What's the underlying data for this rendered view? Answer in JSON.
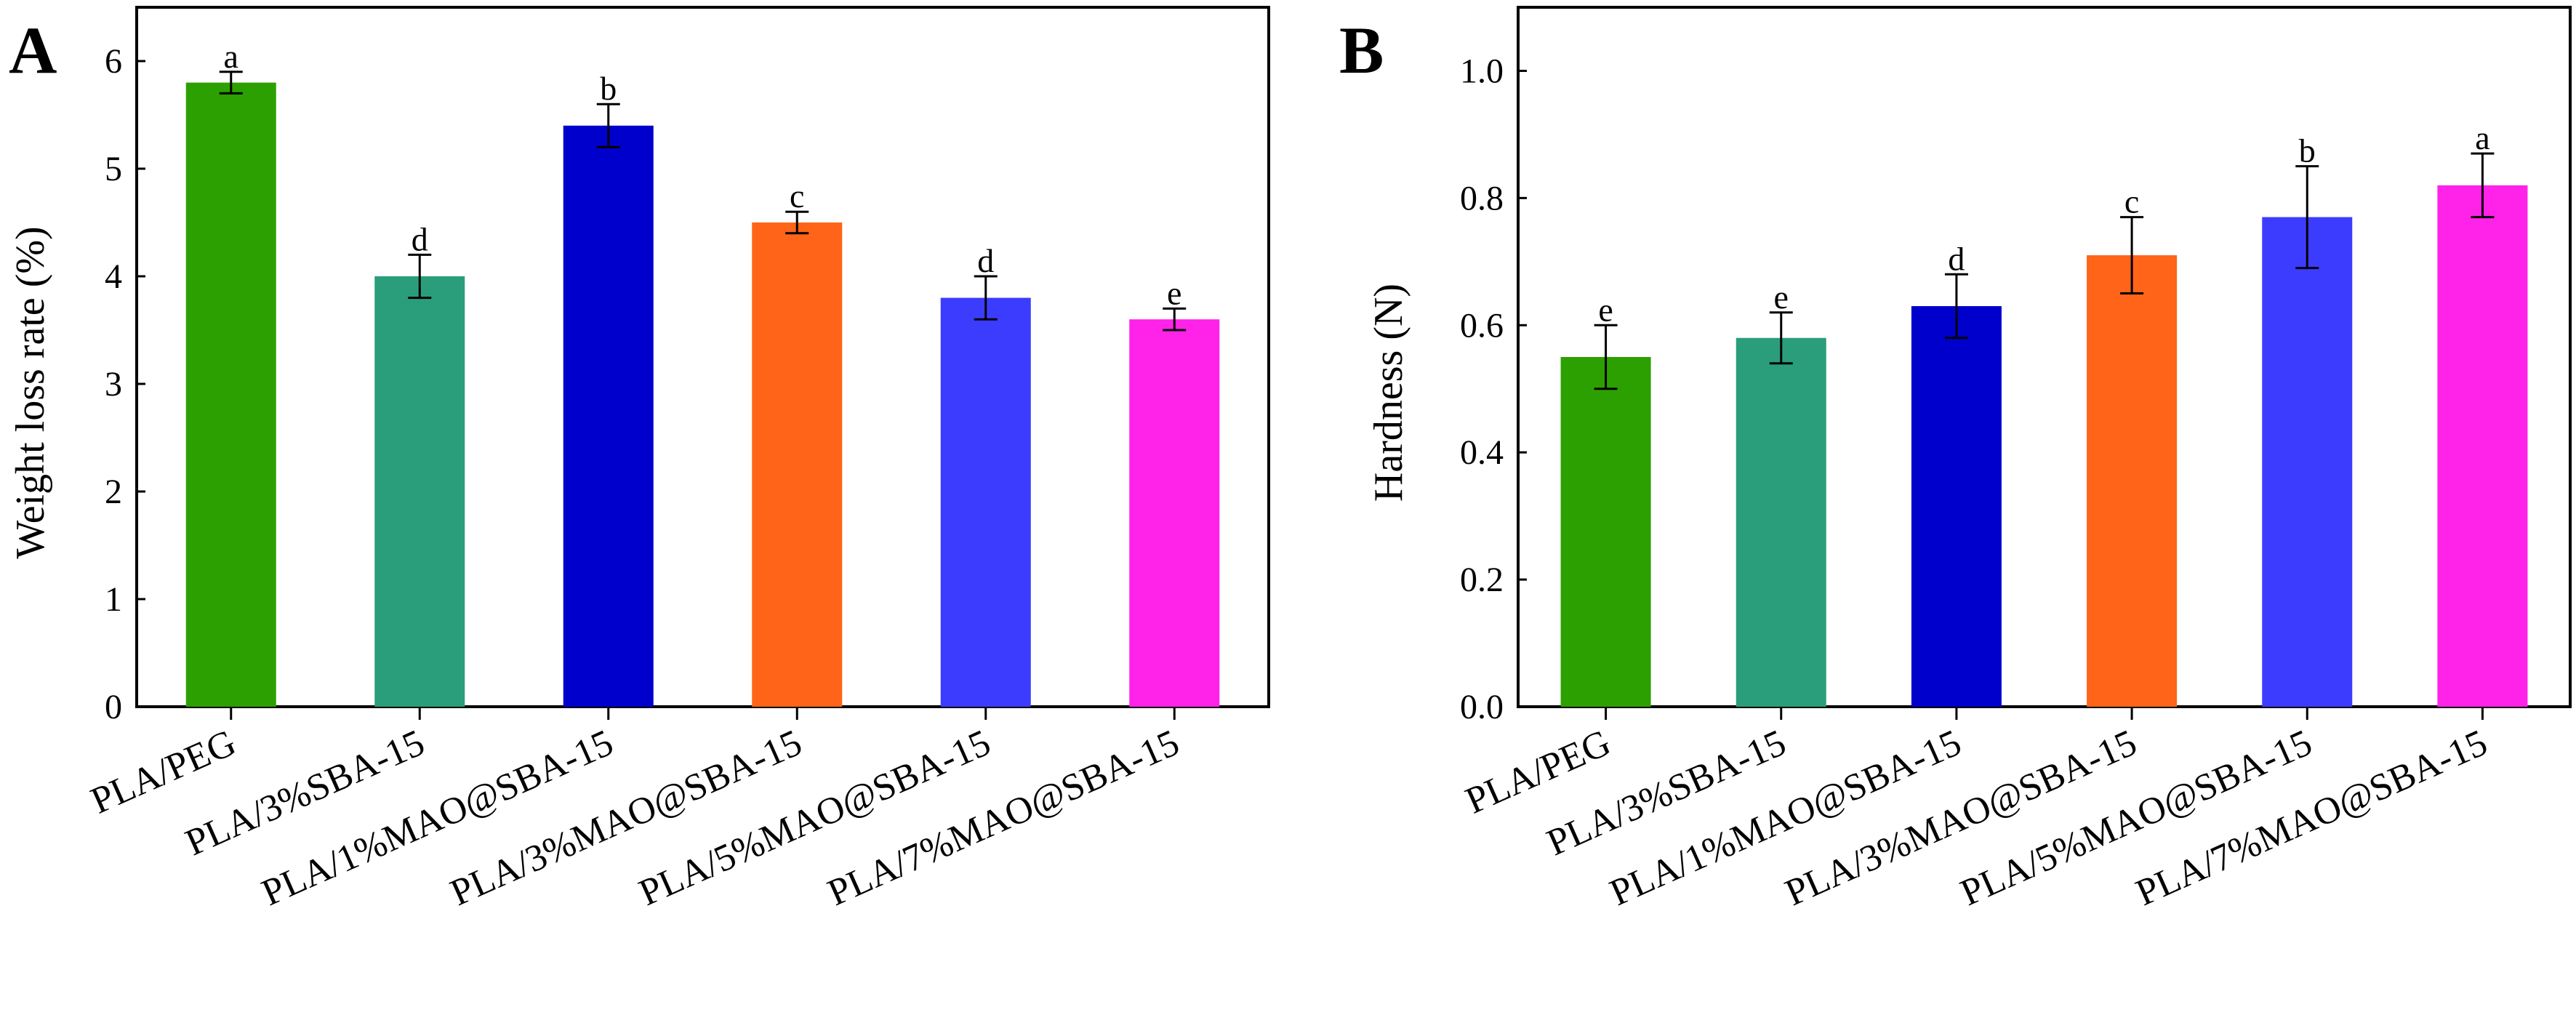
{
  "chart_data": [
    {
      "panel": "A",
      "type": "bar",
      "categories": [
        "PLA/PEG",
        "PLA/3%SBA-15",
        "PLA/1%MAO@SBA-15",
        "PLA/3%MAO@SBA-15",
        "PLA/5%MAO@SBA-15",
        "PLA/7%MAO@SBA-15"
      ],
      "values": [
        5.8,
        4.0,
        5.4,
        4.5,
        3.8,
        3.6
      ],
      "errors": [
        0.1,
        0.2,
        0.2,
        0.1,
        0.2,
        0.1
      ],
      "significance": [
        "a",
        "d",
        "b",
        "c",
        "d",
        "e"
      ],
      "colors": [
        "#2ca000",
        "#2a9e7a",
        "#0000cc",
        "#ff6418",
        "#3c3cff",
        "#ff22e8"
      ],
      "ylabel": "Weight loss rate (%)",
      "xlabel": "",
      "ylim": [
        0,
        6.5
      ],
      "yticks": [
        0,
        1,
        2,
        3,
        4,
        5,
        6
      ],
      "ytick_labels": [
        "0",
        "1",
        "2",
        "3",
        "4",
        "5",
        "6"
      ]
    },
    {
      "panel": "B",
      "type": "bar",
      "categories": [
        "PLA/PEG",
        "PLA/3%SBA-15",
        "PLA/1%MAO@SBA-15",
        "PLA/3%MAO@SBA-15",
        "PLA/5%MAO@SBA-15",
        "PLA/7%MAO@SBA-15"
      ],
      "values": [
        0.55,
        0.58,
        0.63,
        0.71,
        0.77,
        0.82
      ],
      "errors": [
        0.05,
        0.04,
        0.05,
        0.06,
        0.08,
        0.05
      ],
      "significance": [
        "e",
        "e",
        "d",
        "c",
        "b",
        "a"
      ],
      "colors": [
        "#2ca000",
        "#2a9e7a",
        "#0000cc",
        "#ff6418",
        "#3c3cff",
        "#ff22e8"
      ],
      "ylabel": "Hardness (N)",
      "xlabel": "",
      "ylim": [
        0,
        1.1
      ],
      "yticks": [
        0,
        0.2,
        0.4,
        0.6,
        0.8,
        1.0
      ],
      "ytick_labels": [
        "0.0",
        "0.2",
        "0.4",
        "0.6",
        "0.8",
        "1.0"
      ]
    }
  ]
}
